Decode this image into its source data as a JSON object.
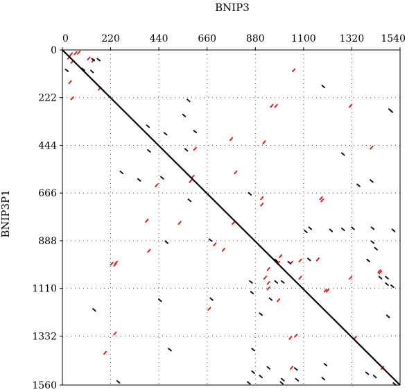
{
  "chart_data": {
    "type": "scatter",
    "title": "",
    "xlabel": "BNIP3",
    "ylabel": "BNIP3P1",
    "x_axis_position": "top",
    "y_axis_inverted": true,
    "xlim": [
      0,
      1540
    ],
    "ylim": [
      0,
      1560
    ],
    "x_ticks": [
      0,
      220,
      440,
      660,
      880,
      1100,
      1320,
      1540
    ],
    "y_ticks": [
      0,
      222,
      444,
      666,
      888,
      1110,
      1332,
      1560
    ],
    "grid": "dotted",
    "colors": {
      "forward_match": "#e8191c",
      "reverse_match": "#111111",
      "diagonal": "#000000"
    },
    "diagonal": {
      "x": [
        0,
        1540
      ],
      "y": [
        0,
        1560
      ]
    },
    "series": [
      {
        "points": [
          [
            40,
            20
          ],
          [
            60,
            15
          ],
          [
            75,
            12
          ],
          [
            30,
            35
          ],
          [
            45,
            55
          ],
          [
            140,
            50
          ],
          [
            170,
            180
          ],
          [
            120,
            40
          ],
          [
            35,
            150
          ],
          [
            45,
            225
          ],
          [
            1055,
            95
          ],
          [
            955,
            260
          ],
          [
            975,
            260
          ],
          [
            1315,
            260
          ],
          [
            770,
            415
          ],
          [
            920,
            430
          ],
          [
            605,
            460
          ],
          [
            790,
            570
          ],
          [
            1410,
            455
          ],
          [
            585,
            610
          ],
          [
            430,
            630
          ],
          [
            595,
            590
          ],
          [
            1180,
            690
          ],
          [
            1185,
            700
          ],
          [
            910,
            690
          ],
          [
            910,
            720
          ],
          [
            780,
            805
          ],
          [
            535,
            805
          ],
          [
            385,
            795
          ],
          [
            695,
            905
          ],
          [
            735,
            930
          ],
          [
            995,
            960
          ],
          [
            985,
            990
          ],
          [
            1045,
            990
          ],
          [
            1085,
            980
          ],
          [
            1165,
            975
          ],
          [
            940,
            1020
          ],
          [
            1085,
            1060
          ],
          [
            1315,
            1060
          ],
          [
            1445,
            1030
          ],
          [
            1450,
            1035
          ],
          [
            395,
            935
          ],
          [
            225,
            995
          ],
          [
            240,
            1000
          ],
          [
            245,
            990
          ],
          [
            925,
            1060
          ],
          [
            940,
            1085
          ],
          [
            940,
            1110
          ],
          [
            1200,
            1120
          ],
          [
            1210,
            1120
          ],
          [
            985,
            1165
          ],
          [
            670,
            1205
          ],
          [
            240,
            1320
          ],
          [
            195,
            1410
          ],
          [
            1040,
            1340
          ],
          [
            1065,
            1330
          ],
          [
            1335,
            1340
          ],
          [
            1045,
            1480
          ],
          [
            1460,
            1480
          ]
        ]
      },
      {
        "points": [
          [
            140,
            45
          ],
          [
            165,
            45
          ],
          [
            20,
            95
          ],
          [
            95,
            90
          ],
          [
            135,
            100
          ],
          [
            575,
            235
          ],
          [
            555,
            305
          ],
          [
            1190,
            170
          ],
          [
            1495,
            280
          ],
          [
            1500,
            285
          ],
          [
            390,
            355
          ],
          [
            470,
            390
          ],
          [
            605,
            380
          ],
          [
            395,
            470
          ],
          [
            565,
            465
          ],
          [
            1280,
            485
          ],
          [
            270,
            570
          ],
          [
            350,
            605
          ],
          [
            455,
            595
          ],
          [
            1350,
            630
          ],
          [
            1410,
            610
          ],
          [
            855,
            670
          ],
          [
            580,
            700
          ],
          [
            1110,
            845
          ],
          [
            1130,
            830
          ],
          [
            1225,
            840
          ],
          [
            1280,
            835
          ],
          [
            1325,
            830
          ],
          [
            1415,
            830
          ],
          [
            1510,
            840
          ],
          [
            475,
            895
          ],
          [
            675,
            885
          ],
          [
            1415,
            895
          ],
          [
            1430,
            925
          ],
          [
            975,
            980
          ],
          [
            1035,
            990
          ],
          [
            1125,
            975
          ],
          [
            1395,
            980
          ],
          [
            860,
            1080
          ],
          [
            1450,
            1060
          ],
          [
            1480,
            1060
          ],
          [
            1480,
            1090
          ],
          [
            1505,
            1100
          ],
          [
            975,
            1080
          ],
          [
            1005,
            1080
          ],
          [
            865,
            1130
          ],
          [
            950,
            1160
          ],
          [
            680,
            1160
          ],
          [
            445,
            1165
          ],
          [
            145,
            1210
          ],
          [
            905,
            1230
          ],
          [
            1485,
            1240
          ],
          [
            870,
            1395
          ],
          [
            490,
            1395
          ],
          [
            870,
            1500
          ],
          [
            905,
            1520
          ],
          [
            940,
            1480
          ],
          [
            1065,
            1485
          ],
          [
            1005,
            1535
          ],
          [
            1070,
            1535
          ],
          [
            1190,
            1530
          ],
          [
            1390,
            1505
          ],
          [
            1200,
            1465
          ],
          [
            1425,
            1520
          ],
          [
            850,
            1550
          ],
          [
            1000,
            1550
          ],
          [
            255,
            1545
          ],
          [
            1515,
            1555
          ]
        ]
      }
    ]
  }
}
